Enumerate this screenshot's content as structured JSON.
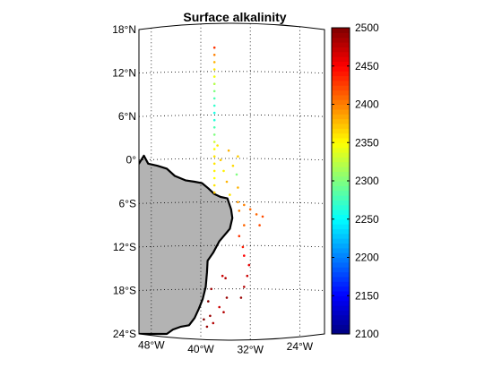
{
  "figure": {
    "title": "Surface alkalinity",
    "map": {
      "lon_range": [
        -50,
        -20
      ],
      "lat_range": [
        -24,
        18
      ],
      "lon_ticks": [
        -48,
        -40,
        -32,
        -24
      ],
      "lat_ticks": [
        -24,
        -18,
        -12,
        -6,
        0,
        6,
        12,
        18
      ],
      "lon_labels": [
        "48°W",
        "40°W",
        "32°W",
        "24°W"
      ],
      "lat_labels": [
        "24°S",
        "18°S",
        "12°S",
        "6°S",
        "0°",
        "6°N",
        "12°N",
        "18°N"
      ],
      "grid": "dotted",
      "land_color": "#b3b3b3",
      "coast_color": "#000000"
    },
    "colorbar": {
      "range": [
        2100,
        2500
      ],
      "ticks": [
        "2100",
        "2150",
        "2200",
        "2250",
        "2300",
        "2350",
        "2400",
        "2450",
        "2500"
      ],
      "colormap": "jet"
    }
  },
  "chart_data": {
    "type": "scatter",
    "title": "Surface alkalinity",
    "xlabel": "",
    "ylabel": "",
    "xlim": [
      -50,
      -20
    ],
    "ylim": [
      -24,
      18
    ],
    "clim": [
      2100,
      2500
    ],
    "points": [
      {
        "lon": -37.8,
        "lat": 15.5,
        "value": 2430
      },
      {
        "lon": -37.8,
        "lat": 14.5,
        "value": 2400
      },
      {
        "lon": -37.8,
        "lat": 13.5,
        "value": 2380
      },
      {
        "lon": -37.8,
        "lat": 12.5,
        "value": 2360
      },
      {
        "lon": -37.8,
        "lat": 11.5,
        "value": 2345
      },
      {
        "lon": -37.8,
        "lat": 10.5,
        "value": 2320
      },
      {
        "lon": -37.8,
        "lat": 9.5,
        "value": 2300
      },
      {
        "lon": -37.8,
        "lat": 8.5,
        "value": 2280
      },
      {
        "lon": -37.8,
        "lat": 7.5,
        "value": 2270
      },
      {
        "lon": -37.8,
        "lat": 6.5,
        "value": 2260
      },
      {
        "lon": -37.8,
        "lat": 5.5,
        "value": 2265
      },
      {
        "lon": -37.8,
        "lat": 4.5,
        "value": 2280
      },
      {
        "lon": -37.8,
        "lat": 3.5,
        "value": 2300
      },
      {
        "lon": -37.8,
        "lat": 2.5,
        "value": 2330
      },
      {
        "lon": -37.8,
        "lat": 1.5,
        "value": 2350
      },
      {
        "lon": -37.8,
        "lat": 0.5,
        "value": 2360
      },
      {
        "lon": -37.8,
        "lat": -0.5,
        "value": 2360
      },
      {
        "lon": -37.8,
        "lat": -1.5,
        "value": 2355
      },
      {
        "lon": -37.8,
        "lat": -2.5,
        "value": 2350
      },
      {
        "lon": -37.8,
        "lat": -3.5,
        "value": 2360
      },
      {
        "lon": -37.8,
        "lat": -4.5,
        "value": 2370
      },
      {
        "lon": -37.3,
        "lat": 2.0,
        "value": 2360
      },
      {
        "lon": -36.8,
        "lat": 0.0,
        "value": 2370
      },
      {
        "lon": -36.3,
        "lat": -1.5,
        "value": 2355
      },
      {
        "lon": -35.8,
        "lat": -3.0,
        "value": 2380
      },
      {
        "lon": -35.3,
        "lat": -4.8,
        "value": 2360
      },
      {
        "lon": -35.5,
        "lat": 1.3,
        "value": 2380
      },
      {
        "lon": -34.0,
        "lat": 0.5,
        "value": 2370
      },
      {
        "lon": -34.8,
        "lat": -0.8,
        "value": 2365
      },
      {
        "lon": -34.2,
        "lat": -2.0,
        "value": 2300
      },
      {
        "lon": -34.0,
        "lat": -3.8,
        "value": 2380
      },
      {
        "lon": -34.0,
        "lat": -5.8,
        "value": 2390
      },
      {
        "lon": -33.8,
        "lat": -7.0,
        "value": 2400
      },
      {
        "lon": -33.0,
        "lat": -6.2,
        "value": 2400
      },
      {
        "lon": -32.0,
        "lat": -6.8,
        "value": 2410
      },
      {
        "lon": -31.0,
        "lat": -7.5,
        "value": 2410
      },
      {
        "lon": -30.0,
        "lat": -7.8,
        "value": 2420
      },
      {
        "lon": -30.5,
        "lat": -9.0,
        "value": 2420
      },
      {
        "lon": -33.0,
        "lat": -9.0,
        "value": 2410
      },
      {
        "lon": -33.8,
        "lat": -10.5,
        "value": 2430
      },
      {
        "lon": -33.2,
        "lat": -12.0,
        "value": 2440
      },
      {
        "lon": -33.0,
        "lat": -13.2,
        "value": 2450
      },
      {
        "lon": -32.2,
        "lat": -14.5,
        "value": 2460
      },
      {
        "lon": -32.5,
        "lat": -16.0,
        "value": 2470
      },
      {
        "lon": -33.0,
        "lat": -17.5,
        "value": 2480
      },
      {
        "lon": -33.5,
        "lat": -19.0,
        "value": 2490
      },
      {
        "lon": -36.5,
        "lat": -16.0,
        "value": 2470
      },
      {
        "lon": -36.0,
        "lat": -16.3,
        "value": 2480
      },
      {
        "lon": -35.8,
        "lat": -19.0,
        "value": 2490
      },
      {
        "lon": -36.3,
        "lat": -21.0,
        "value": 2480
      },
      {
        "lon": -37.0,
        "lat": -20.3,
        "value": 2470
      },
      {
        "lon": -38.3,
        "lat": -17.8,
        "value": 2490
      },
      {
        "lon": -38.8,
        "lat": -19.5,
        "value": 2500
      },
      {
        "lon": -38.5,
        "lat": -21.5,
        "value": 2490
      },
      {
        "lon": -39.5,
        "lat": -22.0,
        "value": 2500
      },
      {
        "lon": -39.0,
        "lat": -23.0,
        "value": 2490
      },
      {
        "lon": -38.0,
        "lat": -22.5,
        "value": 2480
      }
    ]
  }
}
